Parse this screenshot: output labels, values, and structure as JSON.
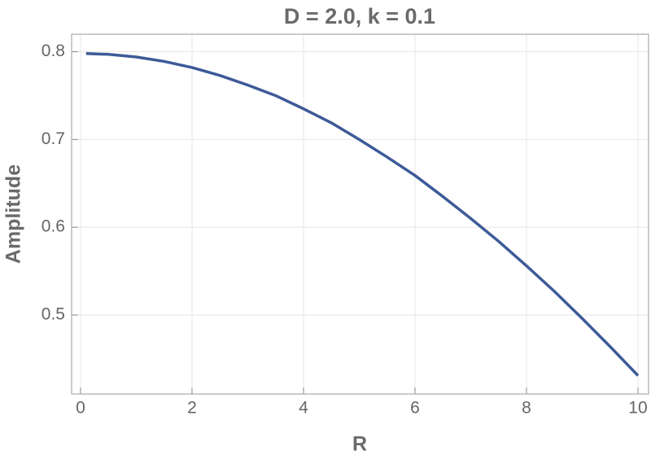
{
  "chart_data": {
    "type": "line",
    "title": "D = 2.0, k = 0.1",
    "xlabel": "R",
    "ylabel": "Amplitude",
    "x": [
      0.1,
      0.5,
      1,
      1.5,
      2,
      2.5,
      3,
      3.5,
      4,
      4.5,
      5,
      5.5,
      6,
      6.5,
      7,
      7.5,
      8,
      8.5,
      9,
      9.5,
      10
    ],
    "series": [
      {
        "name": "Amplitude",
        "color": "#3d5a98",
        "values": [
          0.798,
          0.797,
          0.794,
          0.789,
          0.782,
          0.773,
          0.762,
          0.75,
          0.735,
          0.719,
          0.7,
          0.68,
          0.659,
          0.635,
          0.61,
          0.584,
          0.556,
          0.527,
          0.496,
          0.464,
          0.431
        ]
      }
    ],
    "xlim": [
      -0.16,
      10.19
    ],
    "ylim": [
      0.41,
      0.82
    ],
    "xticks": [
      0,
      2,
      4,
      6,
      8,
      10
    ],
    "yticks": [
      0.5,
      0.6,
      0.7,
      0.8
    ],
    "grid": true
  }
}
